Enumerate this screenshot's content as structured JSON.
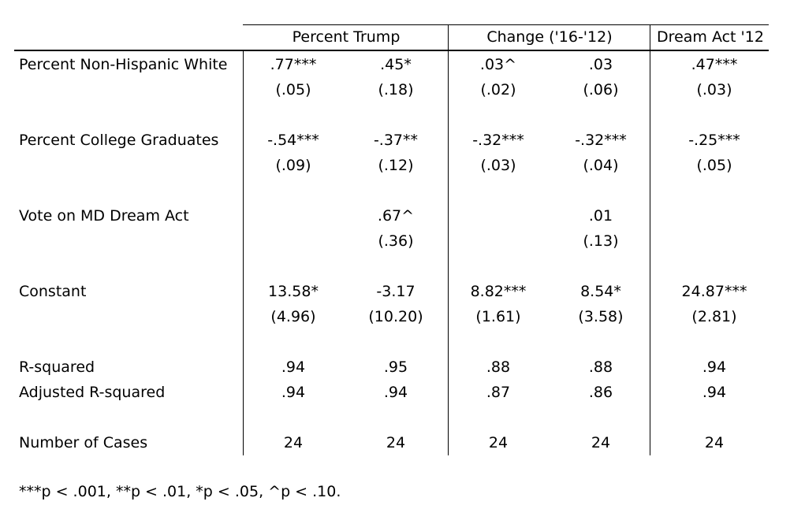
{
  "table": {
    "group_headers": [
      "Percent Trump",
      "Change ('16-'12)",
      "Dream Act '12"
    ],
    "rows": [
      {
        "label": "Percent Non-Hispanic White",
        "coef": [
          ".77***",
          ".45*",
          ".03^",
          ".03",
          ".47***"
        ],
        "se": [
          "(.05)",
          "(.18)",
          "(.02)",
          "(.06)",
          "(.03)"
        ]
      },
      {
        "label": "Percent College Graduates",
        "coef": [
          "-.54***",
          "-.37**",
          "-.32***",
          "-.32***",
          "-.25***"
        ],
        "se": [
          "(.09)",
          "(.12)",
          "(.03)",
          "(.04)",
          "(.05)"
        ]
      },
      {
        "label": "Vote on MD Dream Act",
        "coef": [
          "",
          ".67^",
          "",
          ".01",
          ""
        ],
        "se": [
          "",
          "(.36)",
          "",
          "(.13)",
          ""
        ]
      },
      {
        "label": "Constant",
        "coef": [
          "13.58*",
          "-3.17",
          "8.82***",
          "8.54*",
          "24.87***"
        ],
        "se": [
          "(4.96)",
          "(10.20)",
          "(1.61)",
          "(3.58)",
          "(2.81)"
        ]
      }
    ],
    "fit": [
      {
        "label": "R-squared",
        "values": [
          ".94",
          ".95",
          ".88",
          ".88",
          ".94"
        ]
      },
      {
        "label": "Adjusted R-squared",
        "values": [
          ".94",
          ".94",
          ".87",
          ".86",
          ".94"
        ]
      },
      {
        "label": "Number of Cases",
        "values": [
          "24",
          "24",
          "24",
          "24",
          "24"
        ]
      }
    ],
    "footnote": "***p < .001, **p < .01, *p < .05, ^p < .10."
  }
}
